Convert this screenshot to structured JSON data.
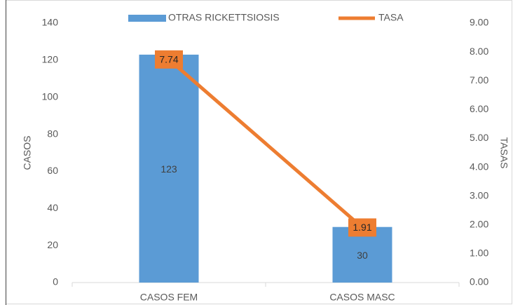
{
  "chart_data": {
    "type": "combo",
    "categories": [
      "CASOS FEM",
      "CASOS MASC"
    ],
    "series": [
      {
        "name": "OTRAS RICKETTSIOSIS",
        "type": "bar",
        "color": "#5b9bd5",
        "values": [
          123,
          30
        ]
      },
      {
        "name": "TASA",
        "type": "line",
        "axis": "y2",
        "color": "#ed7d31",
        "values": [
          7.74,
          1.91
        ]
      }
    ],
    "ylabel": "CASOS",
    "y2label": "TASAS",
    "ylim": [
      0,
      140
    ],
    "yticks": [
      0,
      20,
      40,
      60,
      80,
      100,
      120,
      140
    ],
    "y2lim": [
      0,
      9
    ],
    "y2ticks": [
      {
        "value": 0,
        "label": "0.00"
      },
      {
        "value": 1,
        "label": "1.00"
      },
      {
        "value": 2,
        "label": "2.00"
      },
      {
        "value": 3,
        "label": "3.00"
      },
      {
        "value": 4,
        "label": "4.00"
      },
      {
        "value": 5,
        "label": "5.00"
      },
      {
        "value": 6,
        "label": "6.00"
      },
      {
        "value": 7,
        "label": "7.00"
      },
      {
        "value": 8,
        "label": "8.00"
      },
      {
        "value": 9,
        "label": "9.00"
      }
    ],
    "grid": false,
    "legend": "top"
  }
}
